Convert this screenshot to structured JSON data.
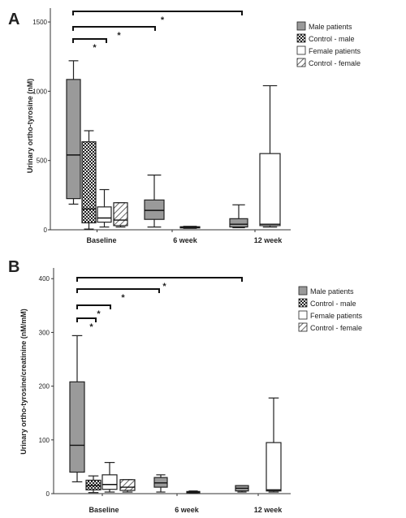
{
  "chart_data": [
    {
      "type": "box",
      "panel_label": "A",
      "ylabel": "Urinary ortho-tyrosine (nM)",
      "ylim": [
        0,
        1600
      ],
      "yticks": [
        0,
        500,
        1000,
        1500
      ],
      "categories": [
        "Baseline",
        "6 week",
        "12 week"
      ],
      "legend": {
        "placement": "top-right",
        "entries": [
          {
            "name": "Male patients",
            "style": "gray"
          },
          {
            "name": "Control - male",
            "style": "checker"
          },
          {
            "name": "Female patients",
            "style": "white"
          },
          {
            "name": "Control - female",
            "style": "hatch"
          }
        ]
      },
      "boxes": [
        {
          "category": 0,
          "series": 0,
          "min": 185,
          "q1": 225,
          "median": 540,
          "q3": 1085,
          "max": 1220
        },
        {
          "category": 0,
          "series": 1,
          "min": 5,
          "q1": 50,
          "median": 150,
          "q3": 635,
          "max": 715
        },
        {
          "category": 0,
          "series": 2,
          "min": 20,
          "q1": 55,
          "median": 85,
          "q3": 165,
          "max": 290
        },
        {
          "category": 0,
          "series": 3,
          "min": 20,
          "q1": 30,
          "median": 70,
          "q3": 195,
          "max": 195
        },
        {
          "category": 1,
          "series": 0,
          "min": 20,
          "q1": 75,
          "median": 140,
          "q3": 215,
          "max": 395
        },
        {
          "category": 1,
          "series": 2,
          "min": 10,
          "q1": 15,
          "median": 18,
          "q3": 22,
          "max": 25
        },
        {
          "category": 2,
          "series": 0,
          "min": 15,
          "q1": 20,
          "median": 40,
          "q3": 80,
          "max": 180
        },
        {
          "category": 2,
          "series": 2,
          "min": 20,
          "q1": 30,
          "median": 40,
          "q3": 550,
          "max": 1040
        }
      ],
      "significance": [
        {
          "from": 0,
          "to": 1,
          "label": "*"
        },
        {
          "from": 0,
          "to": 2,
          "label": "*"
        },
        {
          "from": 0,
          "to": 3,
          "label": "*"
        }
      ]
    },
    {
      "type": "box",
      "panel_label": "B",
      "ylabel": "Urinary ortho-tyrosine/creatinine (nM/mM)",
      "ylim": [
        0,
        420
      ],
      "yticks": [
        0,
        100,
        200,
        300,
        400
      ],
      "categories": [
        "Baseline",
        "6 week",
        "12 week"
      ],
      "legend": {
        "placement": "top-right",
        "entries": [
          {
            "name": "Male patients",
            "style": "gray"
          },
          {
            "name": "Control - male",
            "style": "checker"
          },
          {
            "name": "Female patients",
            "style": "white"
          },
          {
            "name": "Control - female",
            "style": "hatch"
          }
        ]
      },
      "boxes": [
        {
          "category": 0,
          "series": 0,
          "min": 22,
          "q1": 40,
          "median": 90,
          "q3": 208,
          "max": 294
        },
        {
          "category": 0,
          "series": 1,
          "min": 2,
          "q1": 7,
          "median": 15,
          "q3": 25,
          "max": 33
        },
        {
          "category": 0,
          "series": 2,
          "min": 3,
          "q1": 8,
          "median": 17,
          "q3": 35,
          "max": 58
        },
        {
          "category": 0,
          "series": 3,
          "min": 3,
          "q1": 6,
          "median": 12,
          "q3": 26,
          "max": 26
        },
        {
          "category": 1,
          "series": 0,
          "min": 3,
          "q1": 12,
          "median": 20,
          "q3": 30,
          "max": 35
        },
        {
          "category": 1,
          "series": 2,
          "min": 1,
          "q1": 2,
          "median": 3,
          "q3": 4,
          "max": 5
        },
        {
          "category": 2,
          "series": 0,
          "min": 3,
          "q1": 5,
          "median": 10,
          "q3": 15,
          "max": 15
        },
        {
          "category": 2,
          "series": 2,
          "min": 3,
          "q1": 5,
          "median": 7,
          "q3": 95,
          "max": 178
        }
      ],
      "significance": [
        {
          "from": 0,
          "to": 1,
          "label": "*"
        },
        {
          "from": 0,
          "to": 2,
          "label": "*"
        },
        {
          "from": 0,
          "to": 3,
          "label": "*"
        },
        {
          "from": 0,
          "to": 4,
          "label": "*"
        }
      ]
    }
  ]
}
